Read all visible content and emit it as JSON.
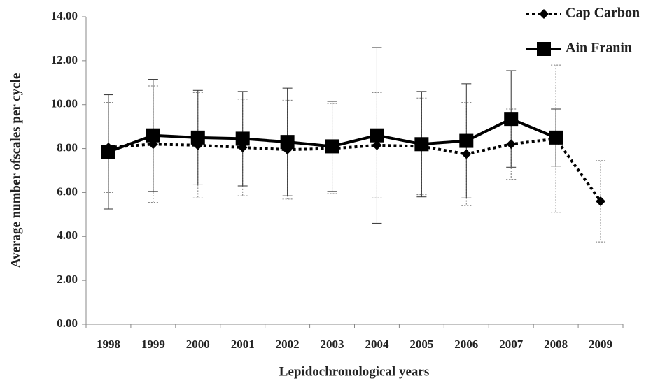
{
  "chart_data": {
    "type": "line",
    "x_label": "Lepidochronological years",
    "y_label": "Average number ofscales per cycle",
    "categories": [
      "1998",
      "1999",
      "2000",
      "2001",
      "2002",
      "2003",
      "2004",
      "2005",
      "2006",
      "2007",
      "2008",
      "2009"
    ],
    "series": [
      {
        "name": "Cap Carbon",
        "color": "#000000",
        "line_style": "dotted",
        "marker": "diamond",
        "values": [
          8.05,
          8.2,
          8.15,
          8.05,
          7.95,
          8.0,
          8.15,
          8.1,
          7.75,
          8.2,
          8.45,
          5.6
        ],
        "errors": [
          2.05,
          2.65,
          2.4,
          2.2,
          2.25,
          2.05,
          2.4,
          2.2,
          2.35,
          1.6,
          3.35,
          1.85
        ]
      },
      {
        "name": "Ain Franin",
        "color": "#000000",
        "line_style": "solid",
        "marker": "square",
        "values": [
          7.85,
          8.6,
          8.5,
          8.45,
          8.3,
          8.1,
          8.6,
          8.2,
          8.35,
          9.35,
          8.5,
          null
        ],
        "errors": [
          2.6,
          2.55,
          2.15,
          2.15,
          2.45,
          2.05,
          4.0,
          2.4,
          2.6,
          2.2,
          1.3,
          null
        ]
      }
    ],
    "ylim": [
      0,
      14
    ],
    "yticks": [
      {
        "value": 0,
        "label": "0.00"
      },
      {
        "value": 2,
        "label": "2.00"
      },
      {
        "value": 4,
        "label": "4.00"
      },
      {
        "value": 6,
        "label": "6.00"
      },
      {
        "value": 8,
        "label": "8.00"
      },
      {
        "value": 10,
        "label": "10.00"
      },
      {
        "value": 12,
        "label": "12.00"
      },
      {
        "value": 14,
        "label": "14.00"
      }
    ],
    "legend": "upper right",
    "grid": false
  }
}
